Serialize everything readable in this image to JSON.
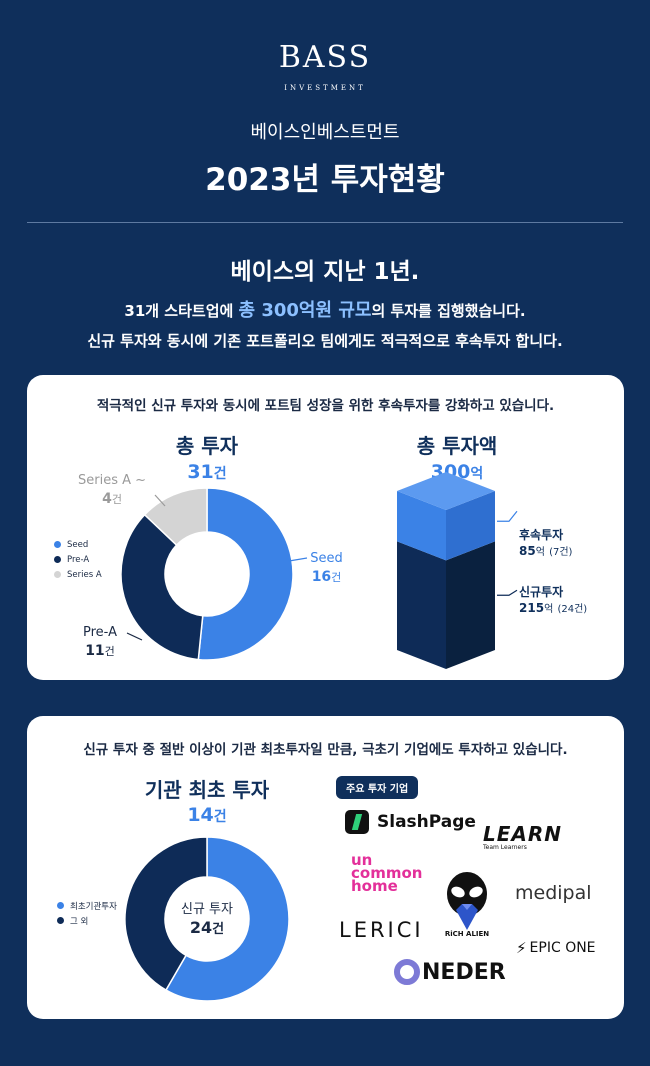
{
  "header": {
    "logo_main": "BASS",
    "logo_sub": "INVESTMENT",
    "company": "베이스인베스트먼트",
    "title": "2023년 투자현황"
  },
  "summary": {
    "heading": "베이스의 지난 1년.",
    "line1_pre": "31개 스타트업에 ",
    "line1_highlight": "총 300억원 규모",
    "line1_post": "의 투자를 집행했습니다.",
    "line2": "신규 투자와 동시에 기존 포트폴리오 팀에게도 적극적으로 후속투자 합니다."
  },
  "card1": {
    "headline": "적극적인 신규 투자와 동시에 포트팀 성장을 위한 후속투자를 강화하고 있습니다.",
    "left_title": "총 투자",
    "left_total": "31",
    "right_title": "총 투자액",
    "right_total": "300",
    "unit_count": "건",
    "unit_amount": "억",
    "legend": [
      "Seed",
      "Pre-A",
      "Series A"
    ],
    "annotations": {
      "seriesA_label": "Series A ~",
      "seriesA_value": "4",
      "seed_label": "Seed",
      "seed_value": "16",
      "prea_label": "Pre-A",
      "prea_value": "11"
    },
    "box": {
      "top_label": "후속투자",
      "top_value": "85",
      "top_detail": "(7건)",
      "bottom_label": "신규투자",
      "bottom_value": "215",
      "bottom_detail": "(24건)"
    }
  },
  "card2": {
    "headline": "신규 투자 중 절반 이상이 기관 최초투자일 만큼, 극초기 기업에도 투자하고 있습니다.",
    "title": "기관 최초 투자",
    "total": "14",
    "unit_count": "건",
    "legend": [
      "최초기관투자",
      "그 외"
    ],
    "center_label": "신규 투자",
    "center_value": "24",
    "tag": "주요 투자 기업",
    "logos": {
      "slashpage": "SlashPage",
      "learn": "LEARN",
      "learn_sub": "Team Learners",
      "uncommon": [
        "un",
        "common",
        "home"
      ],
      "medipal": "medipal",
      "lerici": "LERICI",
      "richalien": "RiCH ALIEN",
      "epicone": "EPIC ONE",
      "oneder": "NEDER"
    }
  },
  "colors": {
    "navy_bg": "#0f2f5b",
    "seed_blue": "#3b82e6",
    "prea_navy": "#0e2b57",
    "seriesA_gray": "#d4d4d4"
  },
  "chart_data": [
    {
      "type": "pie",
      "title": "총 투자",
      "categories": [
        "Seed",
        "Pre-A",
        "Series A ~"
      ],
      "values": [
        16,
        11,
        4
      ]
    },
    {
      "type": "bar",
      "title": "총 투자액",
      "categories": [
        "신규투자",
        "후속투자"
      ],
      "values": [
        215,
        85
      ],
      "counts": [
        24,
        7
      ]
    },
    {
      "type": "pie",
      "title": "기관 최초 투자",
      "categories": [
        "최초기관투자",
        "그 외"
      ],
      "values": [
        14,
        10
      ]
    }
  ]
}
